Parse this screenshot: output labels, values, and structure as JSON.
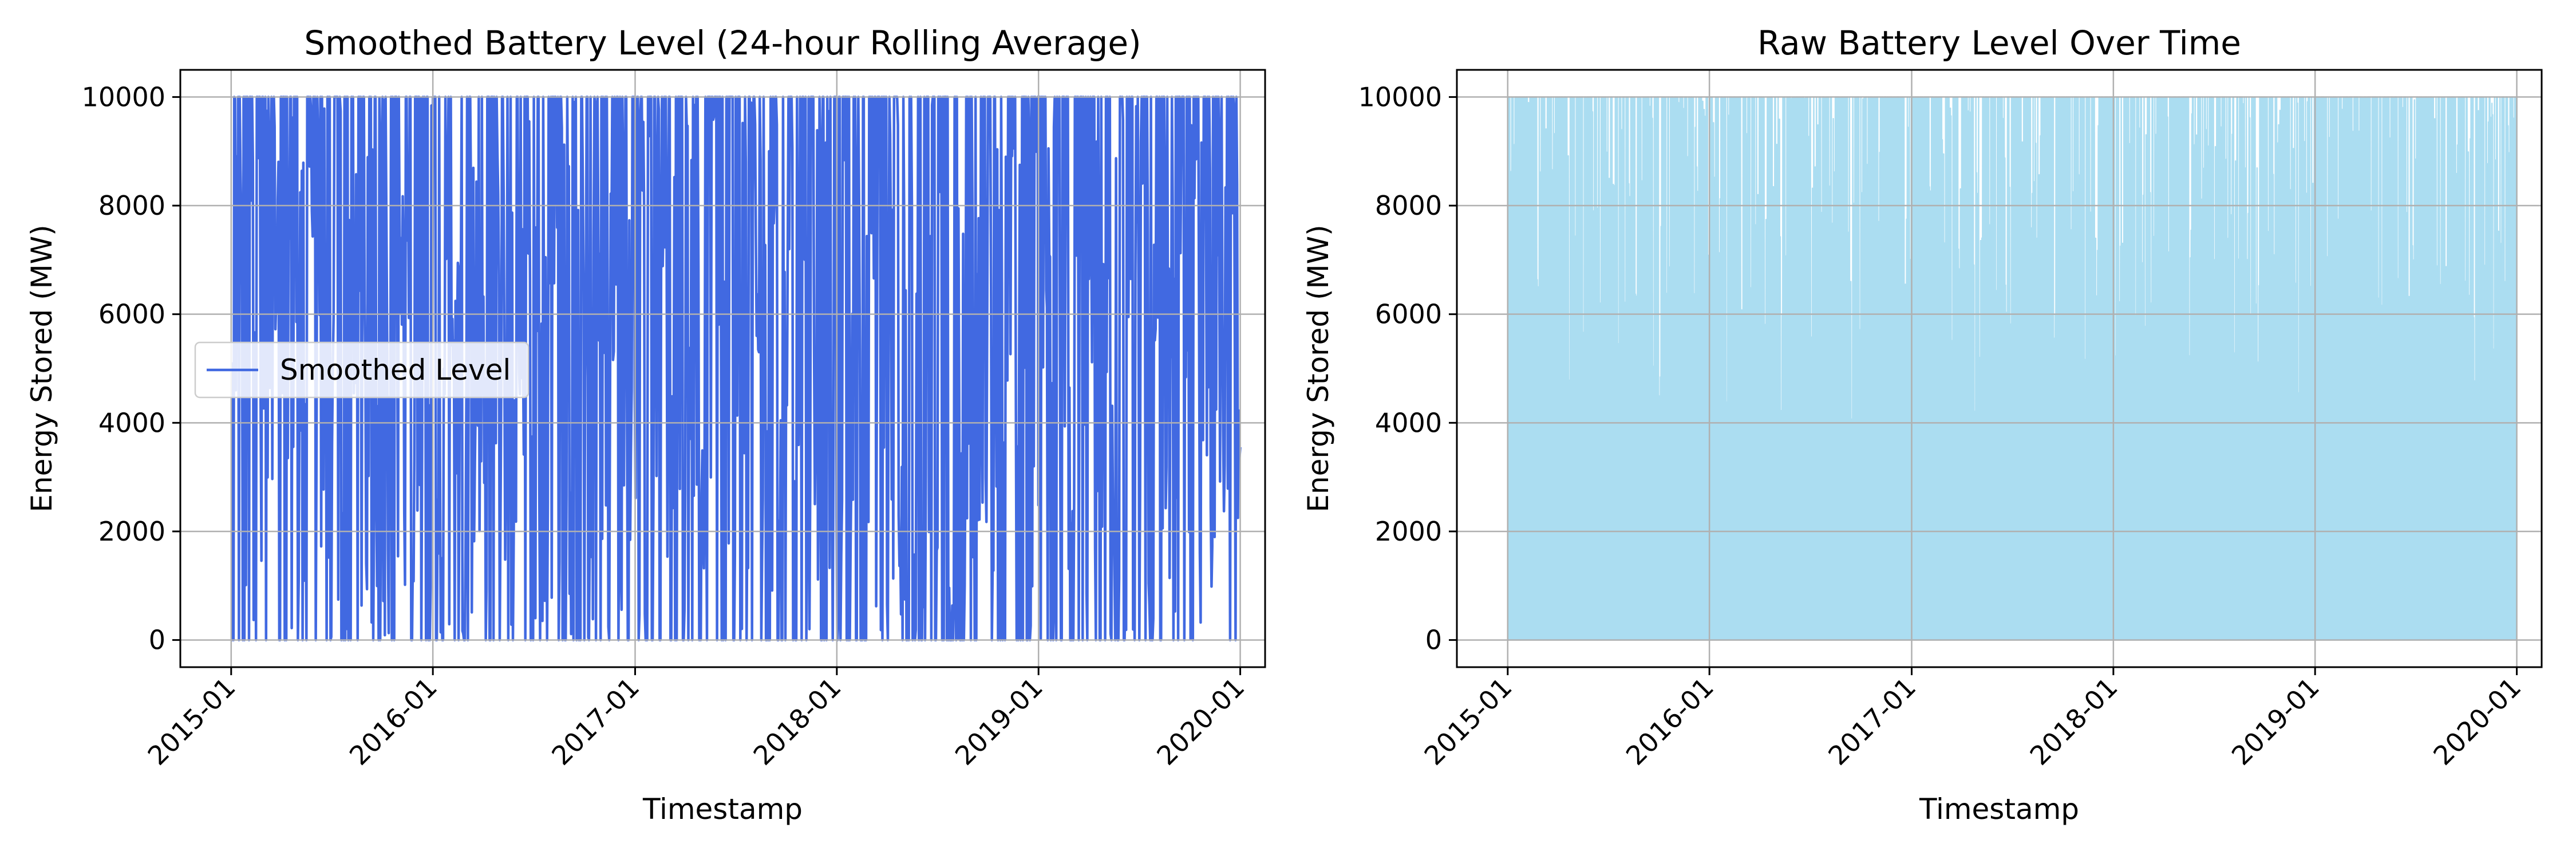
{
  "chart_data": [
    {
      "type": "line",
      "title": "Smoothed Battery Level (24-hour Rolling Average)",
      "xlabel": "Timestamp",
      "ylabel": "Energy Stored (MW)",
      "xlim": [
        "2014-10-01",
        "2020-02-15"
      ],
      "ylim": [
        -500,
        10500
      ],
      "x_ticks": [
        "2015-01",
        "2016-01",
        "2017-01",
        "2018-01",
        "2019-01",
        "2020-01"
      ],
      "y_ticks": [
        0,
        2000,
        4000,
        6000,
        8000,
        10000
      ],
      "grid": true,
      "legend_position": "center-left",
      "series": [
        {
          "name": "Smoothed Level",
          "color": "#4169E1",
          "x": [
            "2015-01-01",
            "2020-01-01"
          ],
          "y_range": [
            0,
            10000
          ],
          "approx_segments": 1300
        }
      ]
    },
    {
      "type": "line",
      "title": "Raw Battery Level Over Time",
      "xlabel": "Timestamp",
      "ylabel": "Energy Stored (MW)",
      "xlim": [
        "2014-10-01",
        "2020-02-15"
      ],
      "ylim": [
        -500,
        10500
      ],
      "x_ticks": [
        "2015-01",
        "2016-01",
        "2017-01",
        "2018-01",
        "2019-01",
        "2020-01"
      ],
      "y_ticks": [
        0,
        2000,
        4000,
        6000,
        8000,
        10000
      ],
      "grid": true,
      "series": [
        {
          "color": "#87CEEB",
          "opacity": 0.7,
          "x": [
            "2015-01-01",
            "2020-01-01"
          ],
          "y_range": [
            0,
            10000
          ],
          "approx_segments": 3000
        }
      ]
    }
  ]
}
